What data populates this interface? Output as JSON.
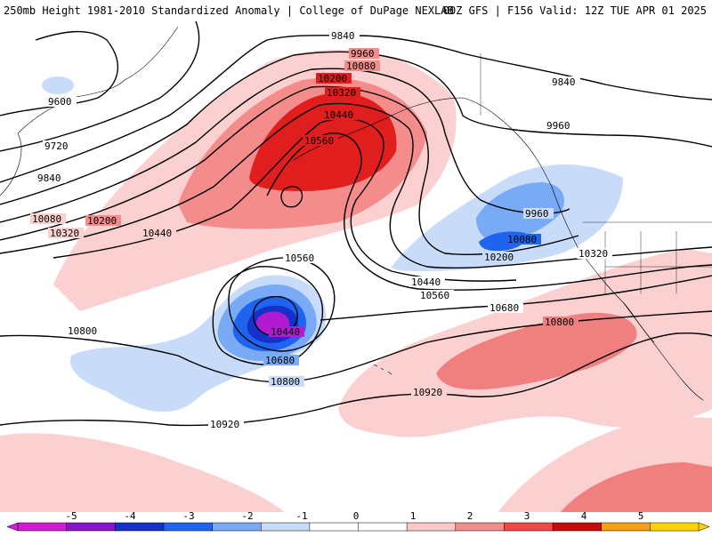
{
  "header": {
    "left": "250mb Height 1981-2010 Standardized Anomaly | College of DuPage NEXLAB",
    "right": "00Z GFS | F156 Valid: 12Z TUE APR 01 2025"
  },
  "contour_labels": [
    "9840",
    "9960",
    "10080",
    "10200",
    "10320",
    "10440",
    "10560",
    "9600",
    "9720",
    "9840",
    "10080",
    "10200",
    "10320",
    "10440",
    "9840",
    "9960",
    "9960",
    "10080",
    "10200",
    "10320",
    "10440",
    "10560",
    "10560",
    "10440",
    "10680",
    "10680",
    "10800",
    "10800",
    "10800",
    "10920",
    "10920"
  ],
  "colorbar": {
    "ticks": [
      "-5",
      "-4",
      "-3",
      "-2",
      "-1",
      "0",
      "1",
      "2",
      "3",
      "4",
      "5"
    ],
    "colors": [
      "#d21ed2",
      "#8c14c8",
      "#1432c8",
      "#1e64f0",
      "#78aaf5",
      "#c8dcfa",
      "#ffffff",
      "#ffffff",
      "#fac8c8",
      "#f58c8c",
      "#f04646",
      "#c80a0a",
      "#f5a014",
      "#ffd200"
    ]
  },
  "colors": {
    "neg1": "#c8dcfa",
    "neg2": "#78aaf5",
    "neg3": "#1e64f0",
    "neg4": "#1432c8",
    "neg5": "#d21ed2",
    "pos1": "#fbd0d0",
    "pos2": "#f58c8c",
    "pos3": "#e01e1e",
    "pos4": "#c80a0a"
  }
}
